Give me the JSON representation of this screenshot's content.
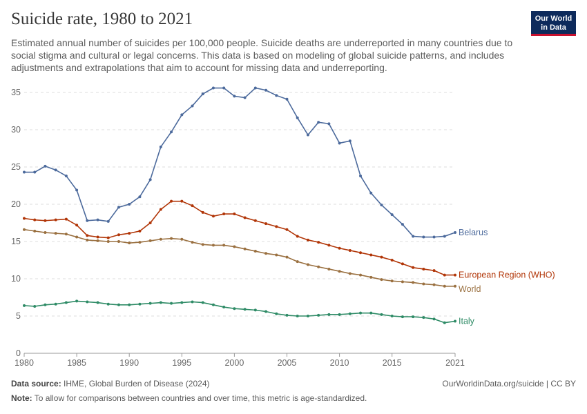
{
  "header": {
    "title": "Suicide rate, 1980 to 2021",
    "subtitle": "Estimated annual number of suicides per 100,000 people. Suicide deaths are underreported in many countries due to social stigma and cultural or legal concerns. This data is based on modeling of global suicide patterns, and includes adjustments and extrapolations that aim to account for missing data and underreporting.",
    "logo_line1": "Our World",
    "logo_line2": "in Data",
    "logo_colors": {
      "background": "#0d2a5b",
      "accent": "#c8102e"
    }
  },
  "footer": {
    "source_label": "Data source:",
    "source_text": "IHME, Global Burden of Disease (2024)",
    "url": "OurWorldinData.org/suicide | CC BY",
    "note_label": "Note:",
    "note_text": "To allow for comparisons between countries and over time, this metric is age-standardized."
  },
  "chart_data": {
    "type": "line",
    "xlim": [
      1980,
      2021
    ],
    "ylim": [
      0,
      35
    ],
    "x_ticks": [
      1980,
      1985,
      1990,
      1995,
      2000,
      2005,
      2010,
      2015,
      2021
    ],
    "y_ticks": [
      0,
      5,
      10,
      15,
      20,
      25,
      30,
      35
    ],
    "grid": "horizontal dashed",
    "legend": "right (line end labels)",
    "x": [
      1980,
      1981,
      1982,
      1983,
      1984,
      1985,
      1986,
      1987,
      1988,
      1989,
      1990,
      1991,
      1992,
      1993,
      1994,
      1995,
      1996,
      1997,
      1998,
      1999,
      2000,
      2001,
      2002,
      2003,
      2004,
      2005,
      2006,
      2007,
      2008,
      2009,
      2010,
      2011,
      2012,
      2013,
      2014,
      2015,
      2016,
      2017,
      2018,
      2019,
      2020,
      2021
    ],
    "series": [
      {
        "name": "Belarus",
        "color": "#4c6a9c",
        "values": [
          24.3,
          24.3,
          25.1,
          24.6,
          23.8,
          21.9,
          17.8,
          17.9,
          17.7,
          19.6,
          20.0,
          21.0,
          23.3,
          27.7,
          29.7,
          32.0,
          33.2,
          34.8,
          35.6,
          35.6,
          34.5,
          34.3,
          35.6,
          35.3,
          34.6,
          34.1,
          31.6,
          29.3,
          31.0,
          30.8,
          28.2,
          28.5,
          23.8,
          21.5,
          19.9,
          18.6,
          17.3,
          15.7,
          15.6,
          15.6,
          15.7,
          16.2
        ]
      },
      {
        "name": "European Region (WHO)",
        "color": "#b13507",
        "values": [
          18.1,
          17.9,
          17.8,
          17.9,
          18.0,
          17.2,
          15.8,
          15.6,
          15.5,
          15.9,
          16.1,
          16.4,
          17.5,
          19.3,
          20.4,
          20.4,
          19.8,
          18.9,
          18.4,
          18.7,
          18.7,
          18.2,
          17.8,
          17.4,
          17.0,
          16.6,
          15.7,
          15.2,
          14.9,
          14.5,
          14.1,
          13.8,
          13.5,
          13.2,
          12.9,
          12.5,
          12.0,
          11.5,
          11.3,
          11.1,
          10.5,
          10.5
        ]
      },
      {
        "name": "World",
        "color": "#9a7040",
        "values": [
          16.6,
          16.4,
          16.2,
          16.1,
          16.0,
          15.6,
          15.2,
          15.1,
          15.0,
          15.0,
          14.8,
          14.9,
          15.1,
          15.3,
          15.4,
          15.3,
          14.9,
          14.6,
          14.5,
          14.5,
          14.3,
          14.0,
          13.7,
          13.4,
          13.2,
          12.9,
          12.3,
          11.9,
          11.6,
          11.3,
          11.0,
          10.7,
          10.5,
          10.2,
          9.9,
          9.7,
          9.6,
          9.5,
          9.3,
          9.2,
          9.0,
          9.0
        ]
      },
      {
        "name": "Italy",
        "color": "#2e8b66",
        "values": [
          6.4,
          6.3,
          6.5,
          6.6,
          6.8,
          7.0,
          6.9,
          6.8,
          6.6,
          6.5,
          6.5,
          6.6,
          6.7,
          6.8,
          6.7,
          6.8,
          6.9,
          6.8,
          6.5,
          6.2,
          6.0,
          5.9,
          5.8,
          5.6,
          5.3,
          5.1,
          5.0,
          5.0,
          5.1,
          5.2,
          5.2,
          5.3,
          5.4,
          5.4,
          5.2,
          5.0,
          4.9,
          4.9,
          4.8,
          4.6,
          4.1,
          4.3
        ]
      }
    ]
  }
}
